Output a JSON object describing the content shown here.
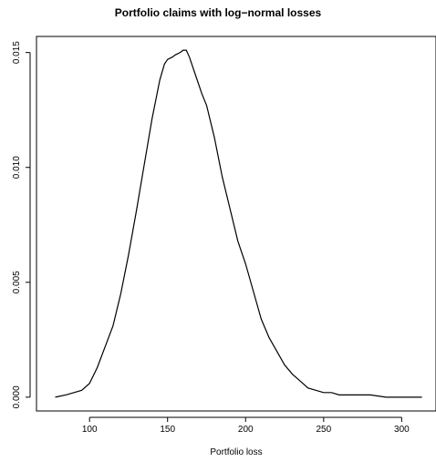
{
  "chart_data": {
    "type": "line",
    "title": "Portfolio claims with log−normal losses",
    "xlabel": "Portfolio loss",
    "ylabel": "",
    "xlim": [
      66,
      322
    ],
    "ylim": [
      -0.0006,
      0.0157
    ],
    "x_ticks": [
      100,
      150,
      200,
      250,
      300
    ],
    "x_tick_labels": [
      "100",
      "150",
      "200",
      "250",
      "300"
    ],
    "y_ticks": [
      0.0,
      0.005,
      0.01,
      0.015
    ],
    "y_tick_labels": [
      "0.000",
      "0.005",
      "0.010",
      "0.015"
    ],
    "grid": false,
    "legend": "none",
    "series": [
      {
        "x": [
          78,
          85,
          90,
          95,
          100,
          105,
          110,
          115,
          120,
          125,
          130,
          135,
          140,
          145,
          148,
          150,
          153,
          155,
          158,
          160,
          162,
          164,
          166,
          168,
          170,
          172,
          175,
          180,
          185,
          190,
          195,
          200,
          205,
          210,
          215,
          220,
          225,
          230,
          235,
          240,
          245,
          250,
          255,
          260,
          265,
          270,
          280,
          290,
          300,
          313
        ],
        "y": [
          0.0,
          0.0001,
          0.0002,
          0.0003,
          0.0006,
          0.0013,
          0.0022,
          0.0031,
          0.0045,
          0.0062,
          0.0081,
          0.0101,
          0.0121,
          0.0138,
          0.0145,
          0.0147,
          0.0148,
          0.0149,
          0.015,
          0.0151,
          0.0151,
          0.0148,
          0.0144,
          0.014,
          0.0136,
          0.0132,
          0.0127,
          0.0113,
          0.0096,
          0.0082,
          0.0068,
          0.0058,
          0.0046,
          0.0034,
          0.0026,
          0.002,
          0.0014,
          0.001,
          0.0007,
          0.0004,
          0.0003,
          0.0002,
          0.0002,
          0.0001,
          0.0001,
          0.0001,
          0.0001,
          0.0,
          0.0,
          0.0
        ]
      }
    ]
  }
}
